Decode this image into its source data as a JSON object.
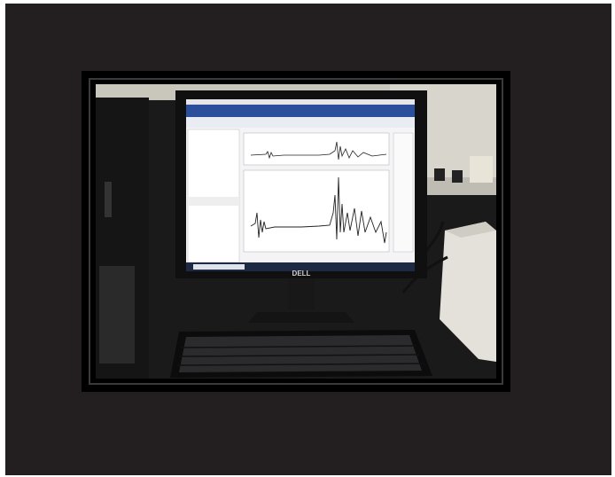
{
  "photo": {
    "monitor_logo": "DELL"
  }
}
